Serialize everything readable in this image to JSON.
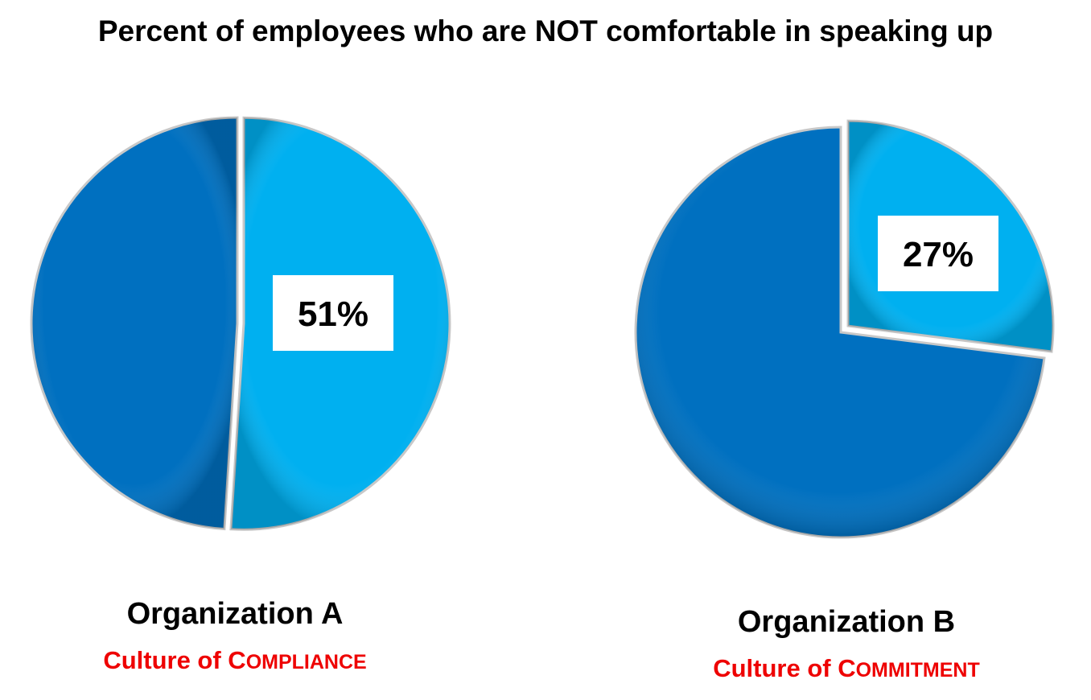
{
  "title": "Percent of employees who are NOT comfortable in speaking up",
  "colors": {
    "highlight_slice": "#00b0f0",
    "base_slice": "#0070c0",
    "culture_text": "#ee0000"
  },
  "chart_data": [
    {
      "type": "pie",
      "name": "Organization A",
      "subtitle_prefix": "Culture of C",
      "subtitle_rest": "OMPLIANCE",
      "slices": [
        {
          "label": "51%",
          "value": 51,
          "highlighted": true
        },
        {
          "label": "",
          "value": 49,
          "highlighted": false
        }
      ]
    },
    {
      "type": "pie",
      "name": "Organization B",
      "subtitle_prefix": "Culture of C",
      "subtitle_rest": "OMMITMENT",
      "slices": [
        {
          "label": "27%",
          "value": 27,
          "highlighted": true
        },
        {
          "label": "",
          "value": 73,
          "highlighted": false
        }
      ]
    }
  ]
}
